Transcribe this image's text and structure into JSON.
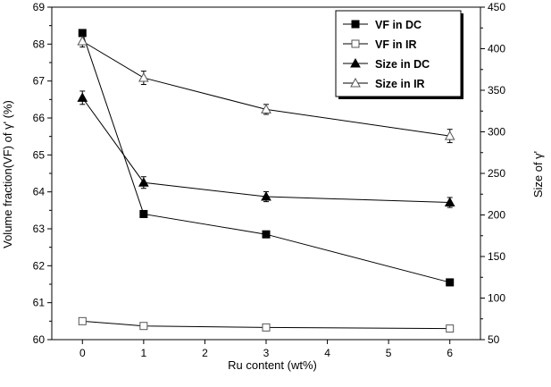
{
  "chart_data": {
    "type": "line",
    "xlabel": "Ru content (wt%)",
    "ylabel_left": "Volume fraction(VF) of γ' (%)",
    "ylabel_right": "Size of γ'",
    "x_ticks": [
      "0",
      "1",
      "2",
      "3",
      "4",
      "5",
      "6"
    ],
    "y_left_ticks": [
      "60",
      "61",
      "62",
      "63",
      "64",
      "65",
      "66",
      "67",
      "68",
      "69"
    ],
    "y_right_ticks": [
      "50",
      "100",
      "150",
      "200",
      "250",
      "300",
      "350",
      "400",
      "450"
    ],
    "xlim": [
      -0.5,
      6.5
    ],
    "ylim_left": [
      60,
      69
    ],
    "ylim_right": [
      50,
      450
    ],
    "grid": false,
    "legend_position": "top-right",
    "x": [
      0,
      1,
      3,
      6
    ],
    "series": [
      {
        "name": "VF in DC",
        "axis": "left",
        "marker": "filled-square",
        "values": [
          68.3,
          63.4,
          62.85,
          61.55
        ],
        "errors": [
          0.08,
          0.05,
          0.05,
          0.05
        ]
      },
      {
        "name": "VF in IR",
        "axis": "left",
        "marker": "open-square",
        "values": [
          60.5,
          60.37,
          60.33,
          60.3
        ],
        "errors": [
          0.04,
          0.04,
          0.04,
          0.04
        ]
      },
      {
        "name": "Size in DC",
        "axis": "right",
        "marker": "filled-triangle",
        "values": [
          341,
          239,
          222,
          215
        ],
        "errors": [
          8,
          7,
          6,
          6
        ]
      },
      {
        "name": "Size in IR",
        "axis": "right",
        "marker": "open-triangle",
        "values": [
          409,
          365,
          327,
          295
        ],
        "errors": [
          7,
          8,
          6,
          8
        ]
      }
    ]
  }
}
